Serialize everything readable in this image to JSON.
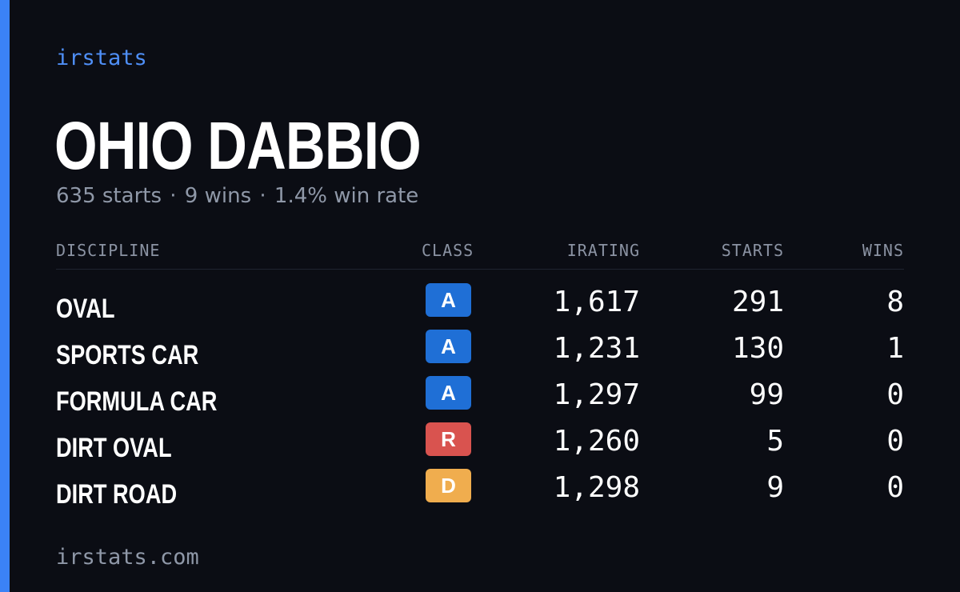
{
  "brand": "irstats",
  "driver": {
    "name": "OHIO DABBIO",
    "summary": {
      "starts": "635 starts",
      "wins": "9 wins",
      "win_rate": "1.4% win rate",
      "separator": "·"
    }
  },
  "table": {
    "headers": {
      "discipline": "DISCIPLINE",
      "class": "CLASS",
      "irating": "IRATING",
      "starts": "STARTS",
      "wins": "WINS"
    },
    "rows": [
      {
        "discipline": "OVAL",
        "class": "A",
        "class_color": "#1f6fd6",
        "irating": "1,617",
        "starts": "291",
        "wins": "8"
      },
      {
        "discipline": "SPORTS CAR",
        "class": "A",
        "class_color": "#1f6fd6",
        "irating": "1,231",
        "starts": "130",
        "wins": "1"
      },
      {
        "discipline": "FORMULA CAR",
        "class": "A",
        "class_color": "#1f6fd6",
        "irating": "1,297",
        "starts": "99",
        "wins": "0"
      },
      {
        "discipline": "DIRT OVAL",
        "class": "R",
        "class_color": "#d9534f",
        "irating": "1,260",
        "starts": "5",
        "wins": "0"
      },
      {
        "discipline": "DIRT ROAD",
        "class": "D",
        "class_color": "#f0ad4e",
        "irating": "1,298",
        "starts": "9",
        "wins": "0"
      }
    ]
  },
  "footer": {
    "url": "irstats.com"
  },
  "colors": {
    "background": "#0b0d14",
    "accent": "#3b82f6",
    "muted_text": "#8f98a8"
  }
}
